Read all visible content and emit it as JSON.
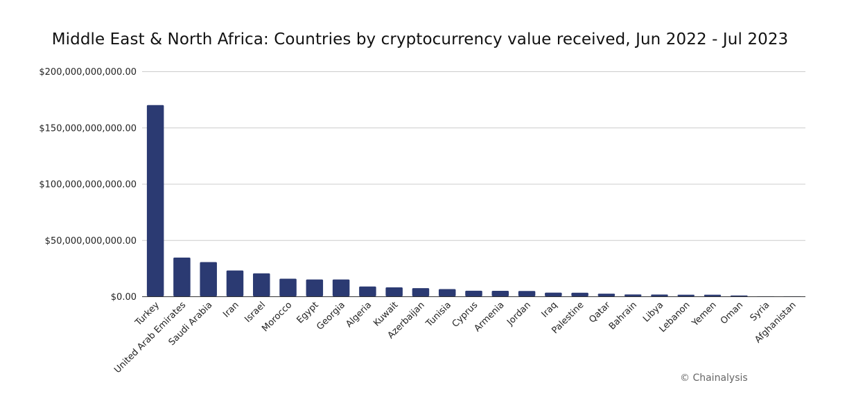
{
  "chart_data": {
    "type": "bar",
    "title": "Middle East & North Africa: Countries by cryptocurrency value received, Jun 2022 - Jul 2023",
    "xlabel": "",
    "ylabel": "",
    "ylim": [
      0,
      200000000000
    ],
    "yticks": [
      0,
      50000000000,
      100000000000,
      150000000000,
      200000000000
    ],
    "ytick_labels": [
      "$0.00",
      "$50,000,000,000.00",
      "$100,000,000,000.00",
      "$150,000,000,000.00",
      "$200,000,000,000.00"
    ],
    "grid": true,
    "legend": "none",
    "bar_color": "#2b3a72",
    "categories": [
      "Turkey",
      "United Arab Emirates",
      "Saudi Arabia",
      "Iran",
      "Israel",
      "Morocco",
      "Egypt",
      "Georgia",
      "Algeria",
      "Kuwait",
      "Azerbaijan",
      "Tunisia",
      "Cyprus",
      "Armenia",
      "Jordan",
      "Iraq",
      "Palestine",
      "Qatar",
      "Bahrain",
      "Libya",
      "Lebanon",
      "Yemen",
      "Oman",
      "Syria",
      "Afghanistan"
    ],
    "values": [
      170000000000,
      34500000000,
      30500000000,
      23000000000,
      20500000000,
      15700000000,
      15000000000,
      15000000000,
      8800000000,
      8000000000,
      7300000000,
      6500000000,
      5000000000,
      4900000000,
      4800000000,
      3300000000,
      3200000000,
      2400000000,
      1700000000,
      1600000000,
      1500000000,
      1500000000,
      800000000,
      100000000,
      50000000
    ]
  },
  "credit": "© Chainalysis"
}
